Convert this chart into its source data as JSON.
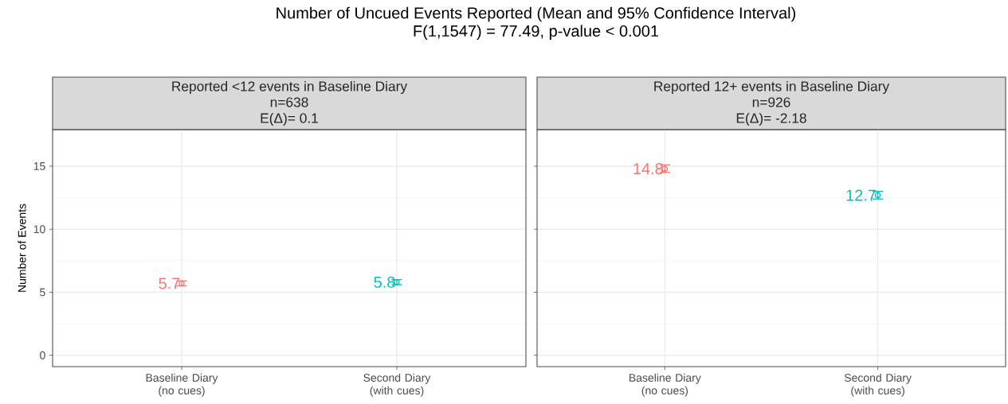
{
  "chart_data": [
    {
      "type": "other",
      "title": "Number of Uncued Events Reported (Mean and 95% Confidence Interval)",
      "subtitle": "F(1,1547) = 77.49, p-value < 0.001"
    },
    {
      "type": "scatter",
      "title": "Reported <12 events in Baseline Diary",
      "annotations": [
        "n=638",
        "E(Δ)= 0.1"
      ],
      "categories": [
        "Baseline Diary (no cues)",
        "Second Diary (with cues)"
      ],
      "values": [
        5.7,
        5.8
      ],
      "errors": [
        0.2,
        0.2
      ],
      "colors": [
        "#f8766d",
        "#00bfc4"
      ],
      "data_labels": true,
      "marker": "circle",
      "grid": true,
      "ylabel": "Number of Events",
      "ylim": [
        -0.9,
        17.9
      ],
      "yticks": [
        0,
        5,
        10,
        15
      ]
    },
    {
      "type": "scatter",
      "title": "Reported 12+ events in Baseline Diary",
      "annotations": [
        "n=926",
        "E(Δ)= -2.18"
      ],
      "categories": [
        "Baseline Diary (no cues)",
        "Second Diary (with cues)"
      ],
      "values": [
        14.8,
        12.7
      ],
      "errors": [
        0.3,
        0.3
      ],
      "colors": [
        "#f8766d",
        "#00bfc4"
      ],
      "data_labels": true,
      "marker": "circle",
      "grid": true,
      "ylim": [
        -0.9,
        17.9
      ],
      "yticks": [
        0,
        5,
        10,
        15
      ],
      "tick_labels": "x"
    }
  ]
}
